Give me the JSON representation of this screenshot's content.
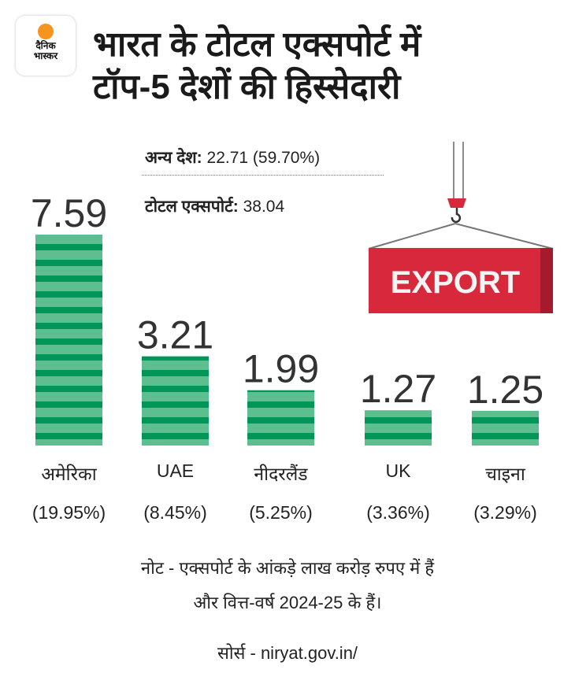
{
  "brand": {
    "logo_text": [
      "दैनिक",
      "भास्कर"
    ],
    "accent": "#f7941d"
  },
  "title_lines": [
    "भारत के टोटल एक्सपोर्ट में",
    "टॉप-5 देशों की हिस्सेदारी"
  ],
  "others": {
    "label": "अन्य देश:",
    "value": "22.71 (59.70%)"
  },
  "total": {
    "label": "टोटल एक्सपोर्ट:",
    "value": "38.04"
  },
  "illustration": {
    "container_text": "EXPORT",
    "color": "#d8283c"
  },
  "chart_data": {
    "type": "bar",
    "title": "भारत के टोटल एक्सपोर्ट में टॉप-5 देशों की हिस्सेदारी",
    "categories": [
      "अमेरिका",
      "UAE",
      "नीदरलैंड",
      "UK",
      "चाइना"
    ],
    "values": [
      7.59,
      3.21,
      1.99,
      1.27,
      1.25
    ],
    "value_labels": [
      "7.59",
      "3.21",
      "1.99",
      "1.27",
      "1.25"
    ],
    "shares": [
      "(19.95%)",
      "(8.45%)",
      "(5.25%)",
      "(3.36%)",
      "(3.29%)"
    ],
    "ylim": [
      0,
      7.59
    ],
    "unit": "लाख करोड़ रुपए",
    "colors": {
      "light": "#5dbf90",
      "dark": "#00965a"
    }
  },
  "note_lines": [
    "नोट - एक्सपोर्ट के आंकड़े लाख करोड़ रुपए में हैं",
    "और वित्त-वर्ष 2024-25 के हैं।"
  ],
  "source": "सोर्स - niryat.gov.in/"
}
